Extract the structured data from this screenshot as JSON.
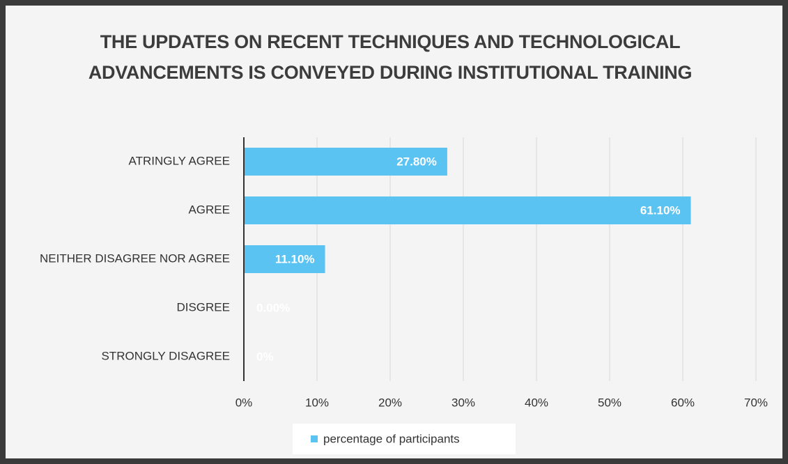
{
  "chart_data": {
    "type": "hbar",
    "title": "THE UPDATES ON RECENT TECHNIQUES AND TECHNOLOGICAL ADVANCEMENTS IS CONVEYED DURING INSTITUTIONAL TRAINING",
    "categories": [
      "ATRINGLY AGREE",
      "AGREE",
      "NEITHER DISAGREE NOR AGREE",
      "DISGREE",
      "STRONGLY DISAGREE"
    ],
    "series": [
      {
        "name": "percentage of participants",
        "color": "#5bc3f2",
        "values": [
          27.8,
          61.1,
          11.1,
          0,
          0
        ],
        "value_labels": [
          "27.80%",
          "61.10%",
          "11.10%",
          "0.00%",
          "0%"
        ]
      }
    ],
    "xlim": [
      0,
      70
    ],
    "xticks": [
      {
        "value": 0,
        "label": "0%"
      },
      {
        "value": 10,
        "label": "10%"
      },
      {
        "value": 20,
        "label": "20%"
      },
      {
        "value": 30,
        "label": "30%"
      },
      {
        "value": 40,
        "label": "40%"
      },
      {
        "value": 50,
        "label": "50%"
      },
      {
        "value": 60,
        "label": "60%"
      },
      {
        "value": 70,
        "label": "70%"
      }
    ],
    "grid": true,
    "legend": "bottom"
  }
}
